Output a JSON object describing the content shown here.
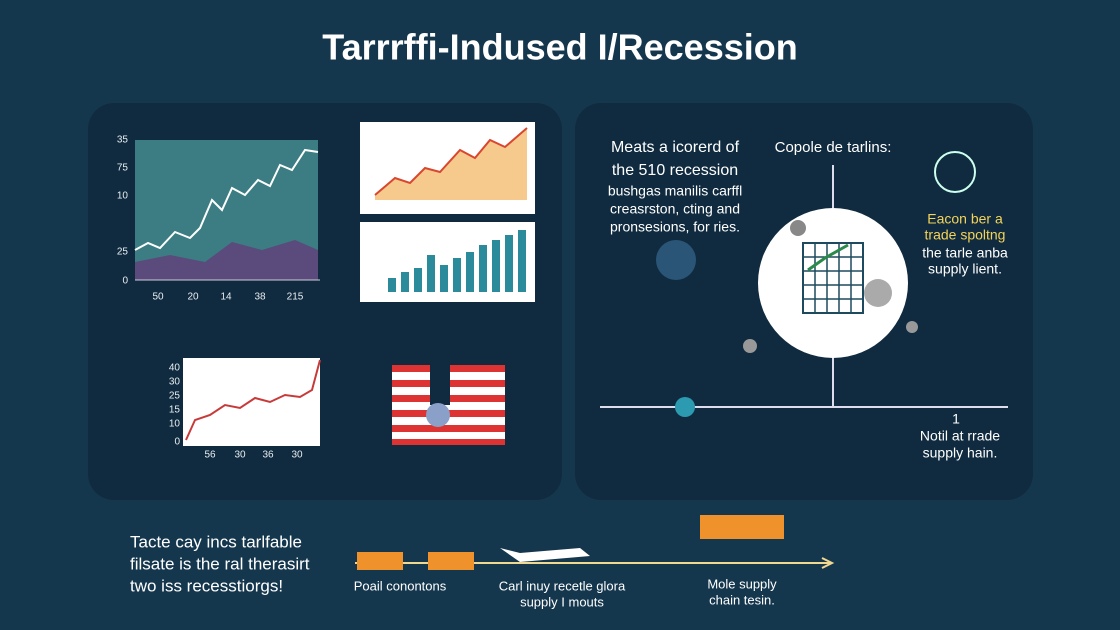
{
  "title": "Tarrrffi-Indused I/Recession",
  "left_panel": {
    "main_chart": {
      "y_labels": [
        "35",
        "75",
        "10",
        "25",
        "0"
      ],
      "x_labels": [
        "50",
        "20",
        "14",
        "38",
        "215"
      ]
    },
    "small_chart": {
      "y_labels": [
        "40",
        "30",
        "25",
        "15",
        "10",
        "0"
      ],
      "x_labels": [
        "56",
        "30",
        "36",
        "30"
      ]
    }
  },
  "right_panel": {
    "text_left": [
      "Meats a icorerd of",
      "the 510 recession",
      "bushgas manilis carffl",
      "creasrston, cting and",
      "pronsesions, for ries."
    ],
    "center_label": "Copole de tarlins:",
    "text_right": [
      "Eacon ber a",
      "trade spoltng",
      "the tarle anba",
      "supply lient."
    ],
    "tick": "1",
    "bottom_note": [
      "Notil at rrade",
      "supply hain."
    ]
  },
  "footer": {
    "text": [
      "Tacte cay incs tarlfable",
      "filsate is the ral therasirt",
      "two iss recesstiorgs!"
    ],
    "label_1": "Poail conontons",
    "label_2": [
      "Carl inuy recetle glora",
      "supply I mouts"
    ],
    "label_3": [
      "Mole supply",
      "chain tesin."
    ]
  }
}
